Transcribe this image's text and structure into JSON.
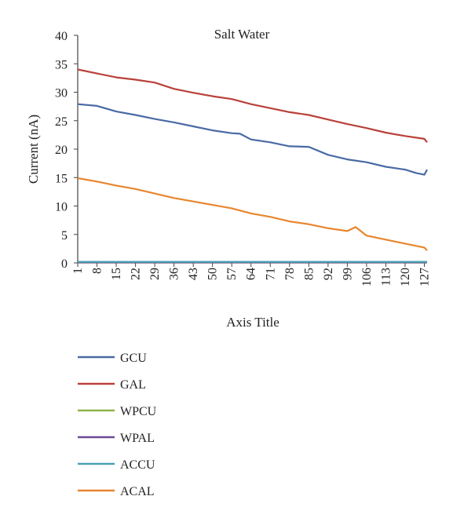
{
  "chart_data": {
    "type": "line",
    "title": "Salt Water",
    "xlabel": "Axis Title",
    "ylabel": "Current (nA)",
    "ylim": [
      0,
      40
    ],
    "yticks": [
      0,
      5,
      10,
      15,
      20,
      25,
      30,
      35,
      40
    ],
    "xlim": [
      1,
      128
    ],
    "xticks": [
      1,
      8,
      15,
      22,
      29,
      36,
      43,
      50,
      57,
      64,
      71,
      78,
      85,
      92,
      99,
      106,
      113,
      120,
      127
    ],
    "grid": false,
    "legend_position": "bottom",
    "series": [
      {
        "name": "GCU",
        "color": "#4a6aa5",
        "x": [
          1,
          8,
          15,
          22,
          29,
          36,
          43,
          50,
          57,
          60,
          64,
          71,
          78,
          85,
          92,
          99,
          106,
          113,
          120,
          124,
          127,
          128
        ],
        "values": [
          27.9,
          27.6,
          26.6,
          26.0,
          25.3,
          24.7,
          24.0,
          23.3,
          22.8,
          22.7,
          21.7,
          21.2,
          20.5,
          20.4,
          19.0,
          18.2,
          17.7,
          16.9,
          16.4,
          15.8,
          15.5,
          16.4
        ]
      },
      {
        "name": "GAL",
        "color": "#b9413a",
        "x": [
          1,
          8,
          15,
          22,
          29,
          36,
          43,
          50,
          57,
          64,
          71,
          78,
          85,
          92,
          99,
          106,
          113,
          120,
          127,
          128
        ],
        "values": [
          34.0,
          33.3,
          32.6,
          32.2,
          31.7,
          30.6,
          29.9,
          29.3,
          28.8,
          27.9,
          27.2,
          26.5,
          26.0,
          25.2,
          24.4,
          23.7,
          22.9,
          22.3,
          21.8,
          21.2
        ]
      },
      {
        "name": "WPCU",
        "color": "#8fb34a",
        "x": [
          1,
          128
        ],
        "values": [
          0.1,
          0.1
        ]
      },
      {
        "name": "WPAL",
        "color": "#6f4a95",
        "x": [
          1,
          128
        ],
        "values": [
          0.1,
          0.1
        ]
      },
      {
        "name": "ACCU",
        "color": "#4aa0b4",
        "x": [
          1,
          128
        ],
        "values": [
          0.2,
          0.2
        ]
      },
      {
        "name": "ACAL",
        "color": "#e8862e",
        "x": [
          1,
          8,
          15,
          22,
          29,
          36,
          43,
          50,
          57,
          64,
          71,
          78,
          85,
          92,
          99,
          102,
          106,
          113,
          120,
          127,
          128
        ],
        "values": [
          14.9,
          14.3,
          13.6,
          13.0,
          12.2,
          11.4,
          10.8,
          10.2,
          9.6,
          8.7,
          8.1,
          7.3,
          6.8,
          6.1,
          5.6,
          6.3,
          4.8,
          4.1,
          3.4,
          2.7,
          2.2
        ]
      }
    ]
  }
}
